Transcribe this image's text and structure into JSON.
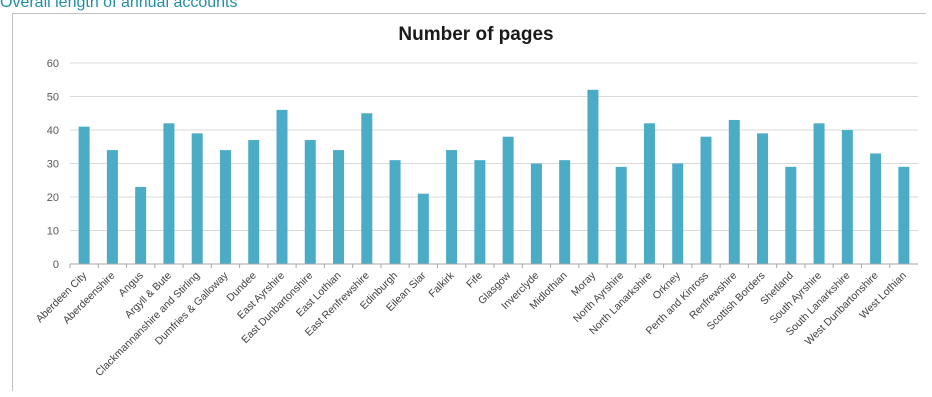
{
  "page": {
    "heading": "Overall length of annual accounts"
  },
  "colors": {
    "bar": "#4bacc6",
    "grid": "#d9d9d9",
    "axis": "#a6a6a6",
    "heading": "#1f8fa6"
  },
  "chart_data": {
    "type": "bar",
    "title": "Number of pages",
    "xlabel": "",
    "ylabel": "",
    "ylim": [
      0,
      60
    ],
    "yticks": [
      0,
      10,
      20,
      30,
      40,
      50,
      60
    ],
    "grid": true,
    "legend": "none",
    "categories": [
      "Aberdeen City",
      "Aberdeenshire",
      "Angus",
      "Argyll & Bute",
      "Clackmannanshire and Stirling",
      "Dumfries & Galloway",
      "Dundee",
      "East Ayrshire",
      "East Dunbartonshire",
      "East Lothian",
      "East Renfrewshire",
      "Edinburgh",
      "Eilean Siar",
      "Falkirk",
      "Fife",
      "Glasgow",
      "Inverclyde",
      "Midlothian",
      "Moray",
      "North Ayrshire",
      "North Lanarkshire",
      "Orkney",
      "Perth and Kinross",
      "Renfrewshire",
      "Scottish Borders",
      "Shetland",
      "South Ayrshire",
      "South Lanarkshire",
      "West Dunbartonshire",
      "West Lothian"
    ],
    "values": [
      41,
      34,
      23,
      42,
      39,
      34,
      37,
      46,
      37,
      34,
      45,
      31,
      21,
      34,
      31,
      38,
      30,
      31,
      52,
      29,
      42,
      30,
      38,
      43,
      39,
      29,
      42,
      40,
      33,
      29
    ]
  }
}
